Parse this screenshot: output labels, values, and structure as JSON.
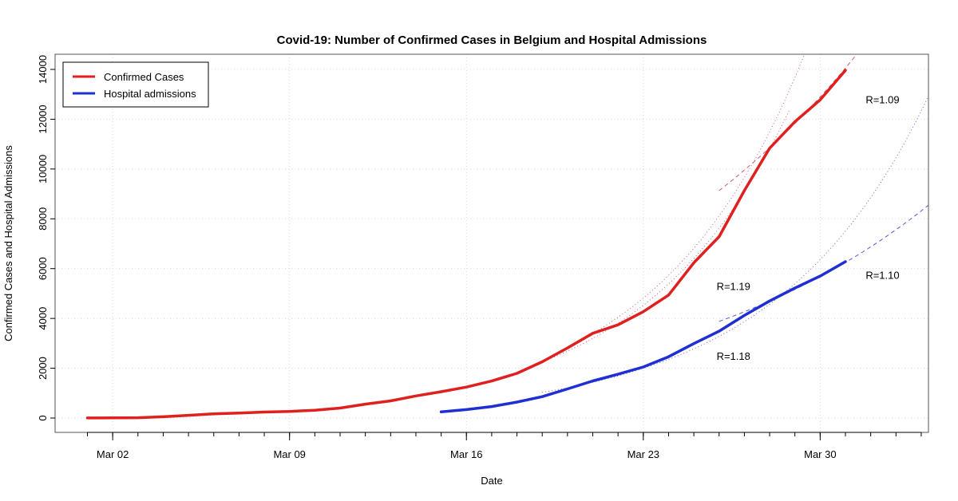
{
  "chart_data": {
    "type": "line",
    "title": "Covid-19: Number of Confirmed Cases in Belgium and Hospital Admissions",
    "xlabel": "Date",
    "ylabel": "Confirmed Cases and Hospital Admissions",
    "xlim_days": [
      0,
      35
    ],
    "x_origin_date": "Mar 01",
    "ylim": [
      -600,
      14600
    ],
    "grid": true,
    "x_ticks": [
      {
        "day": 1,
        "label": "Mar 02"
      },
      {
        "day": 8,
        "label": "Mar 09"
      },
      {
        "day": 15,
        "label": "Mar 16"
      },
      {
        "day": 22,
        "label": "Mar 23"
      },
      {
        "day": 29,
        "label": "Mar 30"
      }
    ],
    "x_minor_tick_days": [
      0,
      1,
      2,
      3,
      4,
      5,
      6,
      7,
      8,
      9,
      10,
      11,
      12,
      13,
      14,
      15,
      16,
      17,
      18,
      19,
      20,
      21,
      22,
      23,
      24,
      25,
      26,
      27,
      28,
      29,
      30,
      31,
      32,
      33
    ],
    "y_ticks": [
      0,
      2000,
      4000,
      6000,
      8000,
      10000,
      12000,
      14000
    ],
    "legend": {
      "position": "top-left",
      "entries": [
        {
          "label": "Confirmed Cases",
          "color": "#e0201e"
        },
        {
          "label": "Hospital admissions",
          "color": "#1f2fd4"
        }
      ]
    },
    "series": [
      {
        "name": "Confirmed Cases",
        "color": "#e0201e",
        "x_days": [
          0,
          1,
          2,
          3,
          4,
          5,
          6,
          7,
          8,
          9,
          10,
          11,
          12,
          13,
          14,
          15,
          16,
          17,
          18,
          19,
          20,
          21,
          22,
          23,
          24,
          25,
          26,
          27,
          28,
          29,
          30
        ],
        "values": [
          2,
          8,
          13,
          50,
          109,
          169,
          200,
          239,
          267,
          314,
          399,
          559,
          689,
          886,
          1058,
          1243,
          1486,
          1795,
          2257,
          2815,
          3401,
          3743,
          4269,
          4937,
          6235,
          7284,
          9134,
          10836,
          11899,
          12775,
          13964
        ]
      },
      {
        "name": "Hospital admissions",
        "color": "#1f2fd4",
        "x_days": [
          14,
          15,
          16,
          17,
          18,
          19,
          20,
          21,
          22,
          23,
          24,
          25,
          26,
          27,
          28,
          29,
          30
        ],
        "values": [
          250,
          340,
          460,
          640,
          860,
          1170,
          1490,
          1760,
          2050,
          2460,
          2990,
          3490,
          4120,
          4700,
          5220,
          5700,
          6280
        ]
      }
    ],
    "fits": [
      {
        "series": "Confirmed Cases",
        "style": "dotted",
        "color": "#d45a7a",
        "base_day": 18,
        "base_value": 2257,
        "R": 1.19,
        "day_range": [
          18,
          27.8
        ]
      },
      {
        "series": "Confirmed Cases",
        "style": "dotted",
        "color": "#d45a7a",
        "base_day": 20,
        "base_value": 3401,
        "R": 1.19,
        "day_range": [
          20,
          30
        ]
      },
      {
        "series": "Confirmed Cases",
        "style": "dashed",
        "color": "#c0607a",
        "base_day": 25,
        "base_value": 9134,
        "R": 1.09,
        "day_range": [
          25,
          31.5
        ]
      },
      {
        "series": "Hospital admissions",
        "style": "dotted",
        "color": "#8060b0",
        "base_day": 18,
        "base_value": 1030,
        "R": 1.18,
        "day_range": [
          18,
          34
        ]
      },
      {
        "series": "Hospital admissions",
        "style": "dashed",
        "color": "#5a5ad0",
        "base_day": 25,
        "base_value": 3880,
        "R": 1.1,
        "day_range": [
          25,
          34
        ]
      }
    ],
    "annotations": [
      {
        "text": "R=1.09",
        "day": 30.8,
        "value": 12800
      },
      {
        "text": "R=1.19",
        "day": 24.9,
        "value": 5300
      },
      {
        "text": "R=1.10",
        "day": 30.8,
        "value": 5750
      },
      {
        "text": "R=1.18",
        "day": 24.9,
        "value": 2500
      }
    ]
  }
}
